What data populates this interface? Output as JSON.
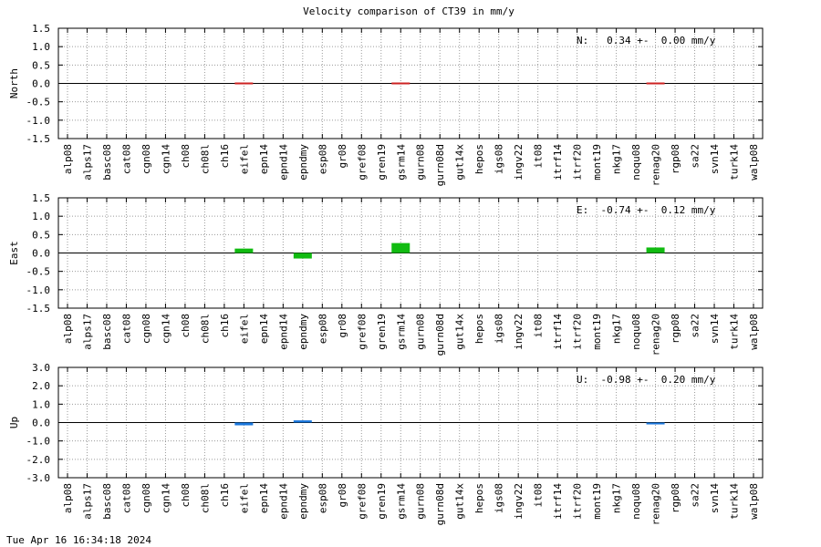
{
  "chart_data": {
    "title": "Velocity comparison of CT39 in mm/y",
    "type": "bar",
    "categories": [
      "alp08",
      "alps17",
      "basc08",
      "cat08",
      "cgn08",
      "cgn14",
      "ch08",
      "ch08l",
      "ch16",
      "eifel",
      "epn14",
      "epnd14",
      "epndmy",
      "esp08",
      "gr08",
      "gref08",
      "gren19",
      "gsrm14",
      "gurn08",
      "gurn08d",
      "gut14x",
      "hepos",
      "igs08",
      "ingv22",
      "it08",
      "itrf14",
      "itrf20",
      "mont19",
      "nkg17",
      "noqu08",
      "renag20",
      "rgp08",
      "sa22",
      "svn14",
      "turk14",
      "walp08"
    ],
    "panels": [
      {
        "ylabel": "North",
        "ylim": [
          -1.5,
          1.5
        ],
        "yticks": [
          -1.5,
          -1.0,
          -0.5,
          0.0,
          0.5,
          1.0,
          1.5
        ],
        "tick_labels": [
          "-1.5",
          "-1.0",
          "-0.5",
          "0.0",
          "0.5",
          "1.0",
          "1.5"
        ],
        "color": "#cc2222",
        "annotation": "N:   0.34 +-  0.00 mm/y",
        "values": {
          "eifel": -0.01,
          "gsrm14": -0.01,
          "renag20": -0.01
        }
      },
      {
        "ylabel": "East",
        "ylim": [
          -1.5,
          1.5
        ],
        "yticks": [
          -1.5,
          -1.0,
          -0.5,
          0.0,
          0.5,
          1.0,
          1.5
        ],
        "tick_labels": [
          "-1.5",
          "-1.0",
          "-0.5",
          "0.0",
          "0.5",
          "1.0",
          "1.5"
        ],
        "color": "#11bb11",
        "annotation": "E:  -0.74 +-  0.12 mm/y",
        "values": {
          "eifel": 0.12,
          "epndmy": -0.15,
          "gsrm14": 0.27,
          "renag20": 0.15
        }
      },
      {
        "ylabel": "Up",
        "ylim": [
          -3.0,
          3.0
        ],
        "yticks": [
          -3.0,
          -2.0,
          -1.0,
          0.0,
          1.0,
          2.0,
          3.0
        ],
        "tick_labels": [
          "-3.0",
          "-2.0",
          "-1.0",
          "0.0",
          "1.0",
          "2.0",
          "3.0"
        ],
        "color": "#1a77dd",
        "annotation": "U:  -0.98 +-  0.20 mm/y",
        "values": {
          "eifel": -0.15,
          "epndmy": 0.12,
          "renag20": -0.1
        }
      }
    ],
    "grid": true
  },
  "footer": {
    "timestamp": "Tue Apr 16 16:34:18 2024"
  }
}
